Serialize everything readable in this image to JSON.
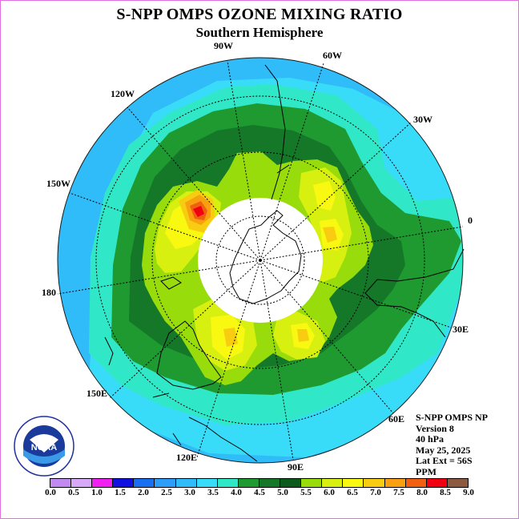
{
  "title": "S-NPP OMPS OZONE MIXING RATIO",
  "subtitle": "Southern Hemisphere",
  "longitude_labels": [
    "90W",
    "60W",
    "30W",
    "0",
    "30E",
    "60E",
    "90E",
    "120E",
    "150E",
    "180",
    "150W",
    "120W"
  ],
  "info_lines": [
    "S-NPP OMPS NP",
    "Version 8",
    "40 hPa",
    "May 25, 2025",
    "Lat Ext = 56S",
    "PPM"
  ],
  "logo": {
    "center_text": "NOAA",
    "ring_text": "NATIONAL OCEANIC AND ATMOSPHERIC ADMINISTRATION  U.S. DEPARTMENT OF COMMERCE"
  },
  "colorbar": {
    "ticks": [
      "0.0",
      "0.5",
      "1.0",
      "1.5",
      "2.0",
      "2.5",
      "3.0",
      "3.5",
      "4.0",
      "4.5",
      "5.0",
      "5.5",
      "6.0",
      "6.5",
      "7.0",
      "7.5",
      "8.0",
      "8.5",
      "9.0"
    ],
    "colors": [
      "#c08af0",
      "#d8a8f8",
      "#f020f0",
      "#1010e0",
      "#1870f0",
      "#2c9ef8",
      "#30bcf8",
      "#38dcf8",
      "#30e8c8",
      "#1f9a30",
      "#147828",
      "#0c5a1c",
      "#98dc0c",
      "#d8f010",
      "#f8f810",
      "#f8cc10",
      "#f8a010",
      "#f06010",
      "#f00010",
      "#8b5a40"
    ]
  },
  "colors": {
    "outer_cyan": "#30bcf8",
    "aqua": "#30e8c8",
    "green_light": "#1f9a30",
    "green_dark": "#147828",
    "lime": "#98dc0c",
    "yellow_green": "#d8f010",
    "yellow": "#f8f810",
    "orange": "#f8a010",
    "red": "#f00010"
  }
}
